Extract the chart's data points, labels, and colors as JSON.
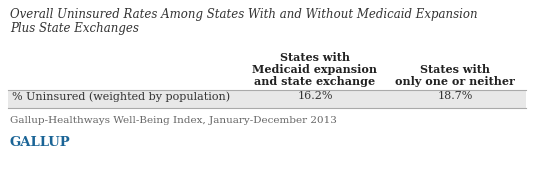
{
  "title_line1": "Overall Uninsured Rates Among States With and Without Medicaid Expansion",
  "title_line2": "Plus State Exchanges",
  "col1_header_line1": "States with",
  "col1_header_line2": "Medicaid expansion",
  "col1_header_line3": "and state exchange",
  "col2_header_line1": "States with",
  "col2_header_line2": "only one or neither",
  "row_label": "% Uninsured (weighted by population)",
  "col1_value": "16.2%",
  "col2_value": "18.7%",
  "footnote": "Gallup-Healthways Well-Being Index, January-December 2013",
  "brand": "GALLUP",
  "row_bg_color": "#e8e8e8",
  "title_color": "#333333",
  "header_color": "#222222",
  "value_color": "#333333",
  "footnote_color": "#666666",
  "brand_color": "#1a6496",
  "line_color": "#aaaaaa",
  "white": "#ffffff",
  "fig_width": 5.34,
  "fig_height": 1.94,
  "dpi": 100
}
